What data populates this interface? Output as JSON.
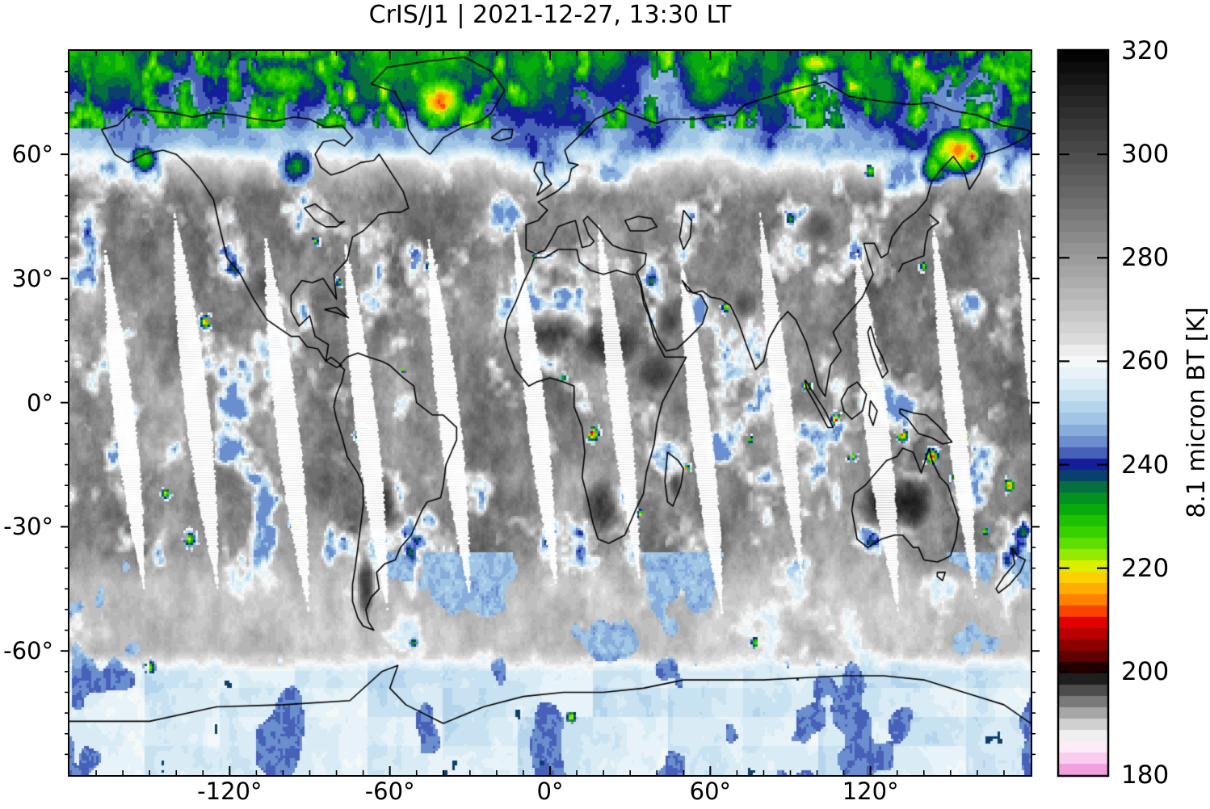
{
  "chart_data": {
    "type": "heatmap",
    "title": "CrIS/J1 | 2021-12-27, 13:30 LT",
    "instrument": "CrIS/J1",
    "timestamp": "2021-12-27, 13:30 LT",
    "projection": "equirectangular world map with coastlines",
    "lon_range": [
      -180,
      180
    ],
    "lat_range": [
      -90,
      85
    ],
    "x_ticks": [
      {
        "value": -120,
        "label": "-120°"
      },
      {
        "value": -60,
        "label": "-60°"
      },
      {
        "value": 0,
        "label": "0°"
      },
      {
        "value": 60,
        "label": "60°"
      },
      {
        "value": 120,
        "label": "120°"
      }
    ],
    "y_ticks": [
      {
        "value": 60,
        "label": "60°"
      },
      {
        "value": 30,
        "label": "30°"
      },
      {
        "value": 0,
        "label": "0°"
      },
      {
        "value": -30,
        "label": "-30°"
      },
      {
        "value": -60,
        "label": "-60°"
      }
    ],
    "colorbar": {
      "label": "8.1 micron BT [K]",
      "range_K": [
        180,
        320
      ],
      "ticks": [
        {
          "value": 320,
          "label": "320"
        },
        {
          "value": 300,
          "label": "300"
        },
        {
          "value": 280,
          "label": "280"
        },
        {
          "value": 260,
          "label": "260"
        },
        {
          "value": 240,
          "label": "240"
        },
        {
          "value": 220,
          "label": "220"
        },
        {
          "value": 200,
          "label": "200"
        },
        {
          "value": 180,
          "label": "180"
        }
      ],
      "levels": 64,
      "stops": [
        [
          320,
          "#000000"
        ],
        [
          310,
          "#282828"
        ],
        [
          300,
          "#4c4c4c"
        ],
        [
          290,
          "#717171"
        ],
        [
          280,
          "#9a9a9a"
        ],
        [
          270,
          "#c2c2c2"
        ],
        [
          264,
          "#dcdcdc"
        ],
        [
          260.6,
          "#f8f8f8"
        ],
        [
          259,
          "#f0f7fa"
        ],
        [
          256,
          "#ddeef6"
        ],
        [
          252,
          "#bedcef"
        ],
        [
          248,
          "#98bfe2"
        ],
        [
          245,
          "#7197d2"
        ],
        [
          242.5,
          "#4a66bb"
        ],
        [
          241,
          "#2c3aa8"
        ],
        [
          240,
          "#111996"
        ],
        [
          238.8,
          "#0a2a84"
        ],
        [
          237.5,
          "#084d62"
        ],
        [
          236,
          "#056b42"
        ],
        [
          234,
          "#038c25"
        ],
        [
          231.5,
          "#05aa0c"
        ],
        [
          229,
          "#20c400"
        ],
        [
          226,
          "#45d800"
        ],
        [
          223.5,
          "#7ce800"
        ],
        [
          221.5,
          "#b5ef00"
        ],
        [
          220,
          "#eeee00"
        ],
        [
          218.5,
          "#fbd300"
        ],
        [
          216.5,
          "#ffb400"
        ],
        [
          214.5,
          "#ff9000"
        ],
        [
          212.5,
          "#fe5f00"
        ],
        [
          211,
          "#f62a00"
        ],
        [
          209.5,
          "#e20000"
        ],
        [
          207.5,
          "#bc0000"
        ],
        [
          205.5,
          "#940000"
        ],
        [
          203.5,
          "#6b0000"
        ],
        [
          201.8,
          "#420000"
        ],
        [
          200.3,
          "#140000"
        ],
        [
          200,
          "#000000"
        ],
        [
          198,
          "#2b2b2b"
        ],
        [
          196,
          "#555555"
        ],
        [
          194,
          "#7e7e7e"
        ],
        [
          192,
          "#a7a7a7"
        ],
        [
          190,
          "#cecece"
        ],
        [
          188,
          "#ececec"
        ],
        [
          186.5,
          "#fdf8fc"
        ],
        [
          185,
          "#fbe7f6"
        ],
        [
          183,
          "#f7c9ec"
        ],
        [
          181.5,
          "#f3a9e2"
        ],
        [
          180,
          "#ee85d9"
        ]
      ]
    },
    "swath_gaps": {
      "count": 12,
      "color": "#ffffff",
      "lat_extent_deg": [
        -50,
        46
      ]
    },
    "features": {
      "cold_cores": [
        [
          -41,
          73,
          13,
          8.5,
          214
        ],
        [
          -40,
          71.5,
          4,
          3,
          209
        ],
        [
          152,
          61,
          13,
          7,
          214
        ],
        [
          158,
          59.5,
          4,
          2.5,
          209
        ],
        [
          -100,
          78,
          20,
          6,
          227
        ],
        [
          -100,
          84.5,
          30,
          3,
          224
        ],
        [
          -40,
          84.5,
          18,
          3,
          228
        ],
        [
          100,
          82,
          11,
          3.5,
          219
        ],
        [
          140,
          78,
          10,
          4,
          224
        ],
        [
          -72,
          70,
          6,
          5,
          231
        ],
        [
          -152,
          59,
          6,
          4,
          228
        ],
        [
          14,
          66,
          6,
          4,
          237
        ],
        [
          144,
          57,
          6,
          5,
          226
        ],
        [
          60,
          68,
          5,
          3,
          234
        ],
        [
          -95,
          57,
          7,
          5,
          233
        ]
      ],
      "hot_surfaces": [
        [
          0,
          17,
          14,
          6,
          309
        ],
        [
          22,
          14,
          14,
          6,
          313
        ],
        [
          40,
          7,
          7,
          5,
          307
        ],
        [
          46,
          21,
          8,
          6,
          305
        ],
        [
          73,
          24,
          5,
          4,
          302
        ],
        [
          20,
          -25,
          8,
          7,
          311
        ],
        [
          124,
          -25,
          9,
          7,
          316
        ],
        [
          135,
          -24,
          9,
          7,
          317
        ],
        [
          -62,
          -25,
          6,
          8,
          309
        ],
        [
          -69,
          -44,
          3.5,
          9,
          313
        ],
        [
          -107,
          28,
          6,
          5,
          301
        ],
        [
          100,
          42,
          8,
          5,
          299
        ],
        [
          47,
          -20,
          2.5,
          3.5,
          304
        ]
      ],
      "convection_clusters": [
        [
          -129,
          19.5,
          2.6,
          208
        ],
        [
          -144,
          -22,
          2,
          215
        ],
        [
          -135,
          -33,
          3,
          221
        ],
        [
          -70.5,
          -7.5,
          3,
          205
        ],
        [
          -55,
          8,
          1.6,
          224
        ],
        [
          -79,
          29,
          1.8,
          225
        ],
        [
          -45,
          33,
          2.2,
          223
        ],
        [
          16,
          -7.5,
          2.8,
          203
        ],
        [
          5,
          6,
          1.6,
          222
        ],
        [
          34,
          -27,
          2.2,
          219
        ],
        [
          51,
          -16,
          2,
          217
        ],
        [
          66,
          23,
          2.2,
          217
        ],
        [
          75,
          -9,
          1.6,
          222
        ],
        [
          96,
          4,
          2,
          211
        ],
        [
          107,
          -4,
          2.4,
          208
        ],
        [
          120,
          4,
          2.8,
          206
        ],
        [
          132,
          -8,
          2.5,
          209
        ],
        [
          143,
          -13,
          3,
          206
        ],
        [
          152,
          -18,
          2,
          212
        ],
        [
          172,
          -20,
          2.6,
          209
        ],
        [
          163,
          -31,
          2,
          221
        ],
        [
          -88,
          39,
          2,
          224
        ],
        [
          -6,
          35,
          1.6,
          226
        ],
        [
          -68,
          -23,
          2,
          217
        ],
        [
          -95,
          -29,
          3,
          209
        ],
        [
          8,
          -76,
          2.4,
          215
        ],
        [
          -150,
          -64,
          3,
          221
        ],
        [
          120,
          56,
          3,
          221
        ],
        [
          140,
          33,
          2,
          224
        ],
        [
          155,
          -8,
          2.2,
          211
        ],
        [
          77,
          -58,
          2.5,
          222
        ],
        [
          -51,
          -58,
          2,
          223
        ],
        [
          113,
          -13,
          2,
          213
        ]
      ]
    }
  }
}
